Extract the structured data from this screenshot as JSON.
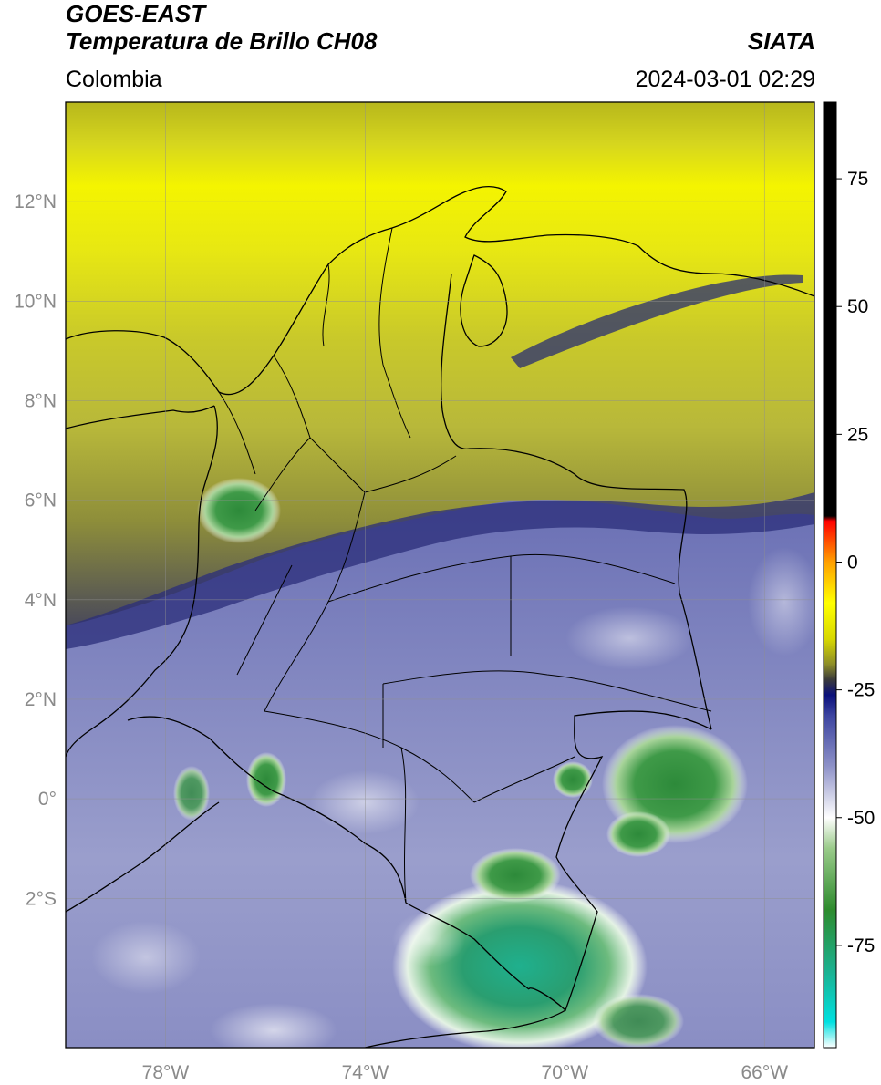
{
  "header": {
    "title_line1": "GOES-EAST",
    "title_line2": "Temperatura de Brillo CH08",
    "brand": "SIATA",
    "region": "Colombia",
    "timestamp": "2024-03-01 02:29"
  },
  "map": {
    "lon_range": [
      -80,
      -65
    ],
    "lat_range": [
      -5,
      14
    ],
    "lat_ticks": [
      {
        "value": 12,
        "label": "12°N"
      },
      {
        "value": 10,
        "label": "10°N"
      },
      {
        "value": 8,
        "label": "8°N"
      },
      {
        "value": 6,
        "label": "6°N"
      },
      {
        "value": 4,
        "label": "4°N"
      },
      {
        "value": 2,
        "label": "2°N"
      },
      {
        "value": 0,
        "label": "0°"
      },
      {
        "value": -2,
        "label": "2°S"
      }
    ],
    "lon_ticks": [
      {
        "value": -78,
        "label": "78°W"
      },
      {
        "value": -74,
        "label": "74°W"
      },
      {
        "value": -70,
        "label": "70°W"
      },
      {
        "value": -66,
        "label": "66°W"
      }
    ],
    "grid": true
  },
  "colorbar": {
    "range": [
      -95,
      90
    ],
    "ticks": [
      {
        "value": 75,
        "label": "75"
      },
      {
        "value": 50,
        "label": "50"
      },
      {
        "value": 25,
        "label": "25"
      },
      {
        "value": 0,
        "label": "0"
      },
      {
        "value": -25,
        "label": "-25"
      },
      {
        "value": -50,
        "label": "-50"
      },
      {
        "value": -75,
        "label": "-75"
      }
    ],
    "stops": [
      {
        "value": -95,
        "color": "#ffffff"
      },
      {
        "value": -90,
        "color": "#00e0e0"
      },
      {
        "value": -80,
        "color": "#1bb190"
      },
      {
        "value": -68,
        "color": "#2e8b2e"
      },
      {
        "value": -56,
        "color": "#9acb8a"
      },
      {
        "value": -50,
        "color": "#ffffff"
      },
      {
        "value": -40,
        "color": "#8e92c8"
      },
      {
        "value": -30,
        "color": "#3c44a0"
      },
      {
        "value": -26,
        "color": "#0a0f7a"
      },
      {
        "value": -23,
        "color": "#3a3a3a"
      },
      {
        "value": -20,
        "color": "#8d8d28"
      },
      {
        "value": -15,
        "color": "#d8d800"
      },
      {
        "value": -8,
        "color": "#ffff00"
      },
      {
        "value": 0,
        "color": "#ffa000"
      },
      {
        "value": 8,
        "color": "#ff0000"
      },
      {
        "value": 9,
        "color": "#000000"
      },
      {
        "value": 90,
        "color": "#000000"
      }
    ]
  }
}
